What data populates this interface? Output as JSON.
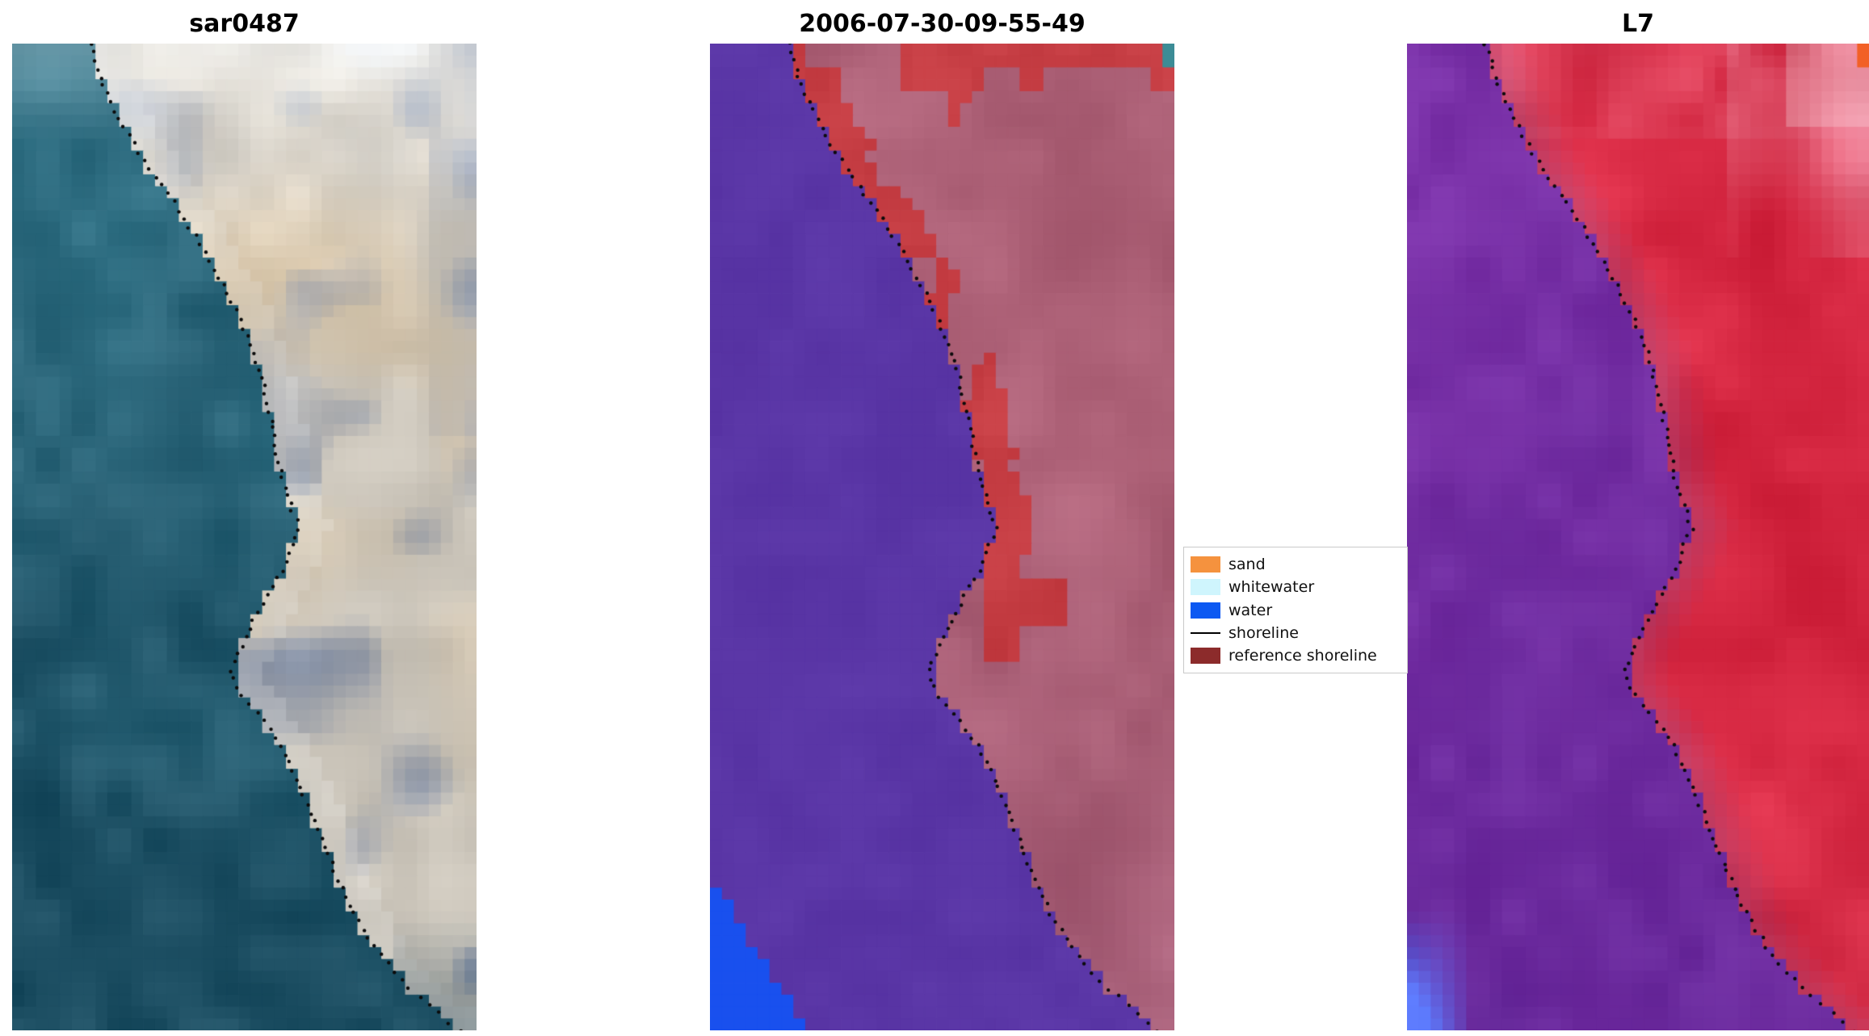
{
  "figure": {
    "background": "#ffffff",
    "panels": [
      {
        "id": "sar0487",
        "title": "sar0487"
      },
      {
        "id": "classified",
        "title": "2006-07-30-09-55-49"
      },
      {
        "id": "l7",
        "title": "L7"
      }
    ],
    "legend": {
      "entries": [
        {
          "label": "sand",
          "color": "#f5923e",
          "type": "patch"
        },
        {
          "label": "whitewater",
          "color": "#cff5fd",
          "type": "patch"
        },
        {
          "label": "water",
          "color": "#0c59f2",
          "type": "patch"
        },
        {
          "label": "shoreline",
          "color": "#000000",
          "type": "line"
        },
        {
          "label": "reference shoreline",
          "color": "#8c2b2b",
          "type": "patch"
        }
      ]
    }
  },
  "chart_data": {
    "type": "heatmap",
    "panels": [
      {
        "title": "sar0487",
        "content": "satellite composite crop of a coast: teal ocean on the left, bright sand and white cloud on the right, detected shoreline as black dotted curve"
      },
      {
        "title": "2006-07-30-09-55-49",
        "content": "pixel classification of same crop: water class solid purple, land mauve, reference shoreline pixels red, bright blue water patch bottom-left, black dotted detected shoreline"
      },
      {
        "title": "L7",
        "content": "Landsat 7 false-colour composite: violet ocean left, crimson land right, blue patch bottom-left, black dotted detected shoreline"
      }
    ],
    "legend_entries": [
      "sand",
      "whitewater",
      "water",
      "shoreline",
      "reference shoreline"
    ],
    "shoreline_normalized_vx": [
      [
        0.0,
        0.17
      ],
      [
        0.04,
        0.195
      ],
      [
        0.08,
        0.235
      ],
      [
        0.12,
        0.285
      ],
      [
        0.16,
        0.345
      ],
      [
        0.2,
        0.4
      ],
      [
        0.24,
        0.45
      ],
      [
        0.28,
        0.492
      ],
      [
        0.32,
        0.525
      ],
      [
        0.36,
        0.548
      ],
      [
        0.4,
        0.565
      ],
      [
        0.44,
        0.58
      ],
      [
        0.47,
        0.6
      ],
      [
        0.49,
        0.618
      ],
      [
        0.51,
        0.6
      ],
      [
        0.53,
        0.585
      ],
      [
        0.56,
        0.548
      ],
      [
        0.59,
        0.515
      ],
      [
        0.62,
        0.483
      ],
      [
        0.64,
        0.472
      ],
      [
        0.66,
        0.492
      ],
      [
        0.68,
        0.53
      ],
      [
        0.7,
        0.562
      ],
      [
        0.73,
        0.596
      ],
      [
        0.76,
        0.625
      ],
      [
        0.8,
        0.66
      ],
      [
        0.84,
        0.695
      ],
      [
        0.88,
        0.733
      ],
      [
        0.92,
        0.785
      ],
      [
        0.96,
        0.86
      ],
      [
        1.0,
        0.965
      ]
    ]
  },
  "render": {
    "grid": {
      "cols": 39,
      "rows": 83
    },
    "dot_color": "#0b0b0b",
    "panels": {
      "sar0487": {
        "seed": 11,
        "waterTop": "#3c8296",
        "waterDeep": "#1c4e62",
        "sand": "#cbc5ba",
        "beige": "#ddc49e",
        "grey": "#7e8ba4",
        "cloud": "#f7fafc",
        "darkCorner": "#3f5a6b"
      },
      "classified": {
        "seed": 23,
        "water": "#5a36a6",
        "land": "#b0647a",
        "landLow": "#965573",
        "red": "#c43c42",
        "blue": "#1950ee",
        "teal": "#3c8c96"
      },
      "l7": {
        "seed": 37,
        "waterTop": "#7a31a8",
        "waterDeep": "#66289a",
        "land": "#d82a44",
        "landM": "#a8487a",
        "pink": "#ec9cb0",
        "dark": "#b01e38",
        "blue": "#5a78fa",
        "orange": "#f26026"
      }
    }
  }
}
